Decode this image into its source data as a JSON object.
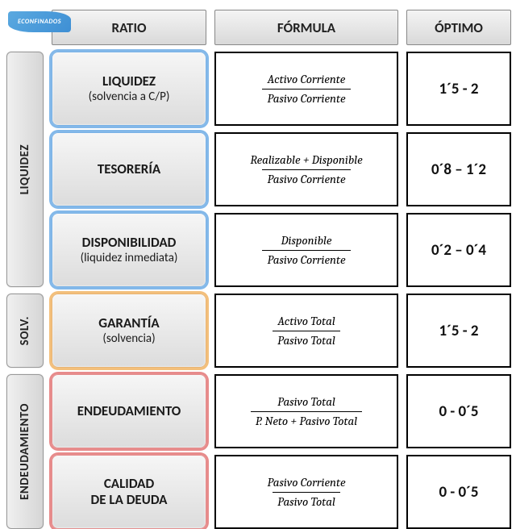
{
  "logo": "ECONFINADOS",
  "headers": {
    "ratio": "RATIO",
    "formula": "FÓRMULA",
    "optimo": "ÓPTIMO"
  },
  "side_groups": [
    {
      "label": "LIQUIDEZ",
      "rows": [
        0,
        1,
        2
      ],
      "glow": "blue"
    },
    {
      "label": "SOLV.",
      "rows": [
        3
      ],
      "glow": "orange"
    },
    {
      "label": "ENDEUDAMIENTO",
      "rows": [
        4,
        5
      ],
      "glow": "red"
    }
  ],
  "rows": [
    {
      "ratio_title": "LIQUIDEZ",
      "ratio_sub": "(solvencia a C/P)",
      "num": "Activo Corriente",
      "den": "Pasivo Corriente",
      "optimo": "1´5 - 2",
      "glow": "blue"
    },
    {
      "ratio_title": "TESORERÍA",
      "ratio_sub": "",
      "num": "Realizable + Disponible",
      "den": "Pasivo Corriente",
      "optimo": "0´8 – 1´2",
      "glow": "blue"
    },
    {
      "ratio_title": "DISPONIBILIDAD",
      "ratio_sub": "(liquidez inmediata)",
      "num": "Disponible",
      "den": "Pasivo Corriente",
      "optimo": "0´2 – 0´4",
      "glow": "blue"
    },
    {
      "ratio_title": "GARANTÍA",
      "ratio_sub": "(solvencia)",
      "num": "Activo Total",
      "den": "Pasivo Total",
      "optimo": "1´5 - 2",
      "glow": "orange"
    },
    {
      "ratio_title": "ENDEUDAMIENTO",
      "ratio_sub": "",
      "num": "Pasivo Total",
      "den": "P. Neto + Pasivo Total",
      "optimo": "0 - 0´5",
      "glow": "red"
    },
    {
      "ratio_title": "CALIDAD",
      "ratio_sub": "DE LA DEUDA",
      "sub_as_title": true,
      "num": "Pasivo Corriente",
      "den": "Pasivo Total",
      "optimo": "0 - 0´5",
      "glow": "red"
    }
  ],
  "colors": {
    "glow_blue": "#5aa0e1",
    "glow_orange": "#f0af5a",
    "glow_red": "#e16e6e",
    "header_bg_top": "#f4f4f4",
    "header_bg_bot": "#d9d9d9",
    "side_bg_l": "#f0f0f0",
    "side_bg_r": "#d6d6d6",
    "cell_border": "#000000",
    "background": "#ffffff"
  },
  "typography": {
    "header_fontsize": 17,
    "ratio_title_fontsize": 17,
    "ratio_sub_fontsize": 15,
    "formula_fontsize": 15,
    "optimo_fontsize": 19,
    "side_fontsize": 15
  }
}
